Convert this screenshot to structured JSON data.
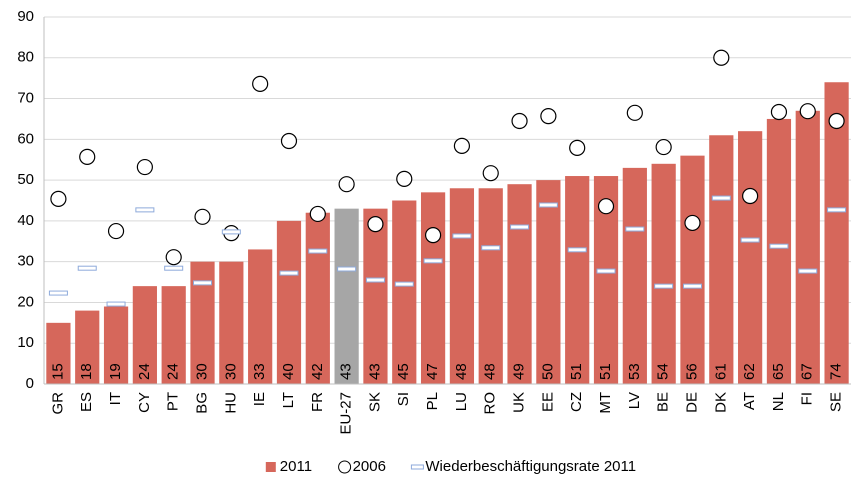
{
  "chart_data": {
    "type": "bar",
    "categories": [
      "GR",
      "ES",
      "IT",
      "CY",
      "PT",
      "BG",
      "HU",
      "IE",
      "LT",
      "FR",
      "EU-27",
      "SK",
      "SI",
      "PL",
      "LU",
      "RO",
      "UK",
      "EE",
      "CZ",
      "MT",
      "LV",
      "BE",
      "DE",
      "DK",
      "AT",
      "NL",
      "FI",
      "SE"
    ],
    "series": [
      {
        "name": "2011",
        "type": "bar",
        "color": "#d6675b",
        "colors": [
          "#d6675b",
          "#d6675b",
          "#d6675b",
          "#d6675b",
          "#d6675b",
          "#d6675b",
          "#d6675b",
          "#d6675b",
          "#d6675b",
          "#d6675b",
          "#a6a6a6",
          "#d6675b",
          "#d6675b",
          "#d6675b",
          "#d6675b",
          "#d6675b",
          "#d6675b",
          "#d6675b",
          "#d6675b",
          "#d6675b",
          "#d6675b",
          "#d6675b",
          "#d6675b",
          "#d6675b",
          "#d6675b",
          "#d6675b",
          "#d6675b",
          "#d6675b"
        ],
        "values": [
          15,
          18,
          19,
          24,
          24,
          30,
          30,
          33,
          40,
          42,
          43,
          43,
          45,
          47,
          48,
          48,
          49,
          50,
          51,
          51,
          53,
          54,
          56,
          61,
          62,
          65,
          67,
          74
        ]
      },
      {
        "name": "2006",
        "type": "circle",
        "color": "#000000",
        "values": [
          45.4,
          55.7,
          37.5,
          53.2,
          31.1,
          41,
          37,
          73.6,
          59.6,
          41.7,
          49,
          39.2,
          50.3,
          36.5,
          58.4,
          51.7,
          64.5,
          65.7,
          57.9,
          43.6,
          66.5,
          58.1,
          39.5,
          80,
          46.1,
          66.7,
          66.9,
          64.5
        ]
      },
      {
        "name": "Wiederbeschäftigungsrate 2011",
        "type": "dash",
        "color": "#8eaadb",
        "values": [
          22.3,
          28.4,
          19.6,
          42.7,
          28.4,
          24.8,
          37.3,
          null,
          27.2,
          32.6,
          28.2,
          25.5,
          24.5,
          30.2,
          36.3,
          33.4,
          38.5,
          43.9,
          32.9,
          27.7,
          38,
          24,
          24,
          45.6,
          35.3,
          33.8,
          27.7,
          42.7
        ]
      }
    ],
    "ylim": [
      0,
      90
    ],
    "yticks": [
      0,
      10,
      20,
      30,
      40,
      50,
      60,
      70,
      80,
      90
    ],
    "grid": true,
    "legend": "bottom"
  }
}
